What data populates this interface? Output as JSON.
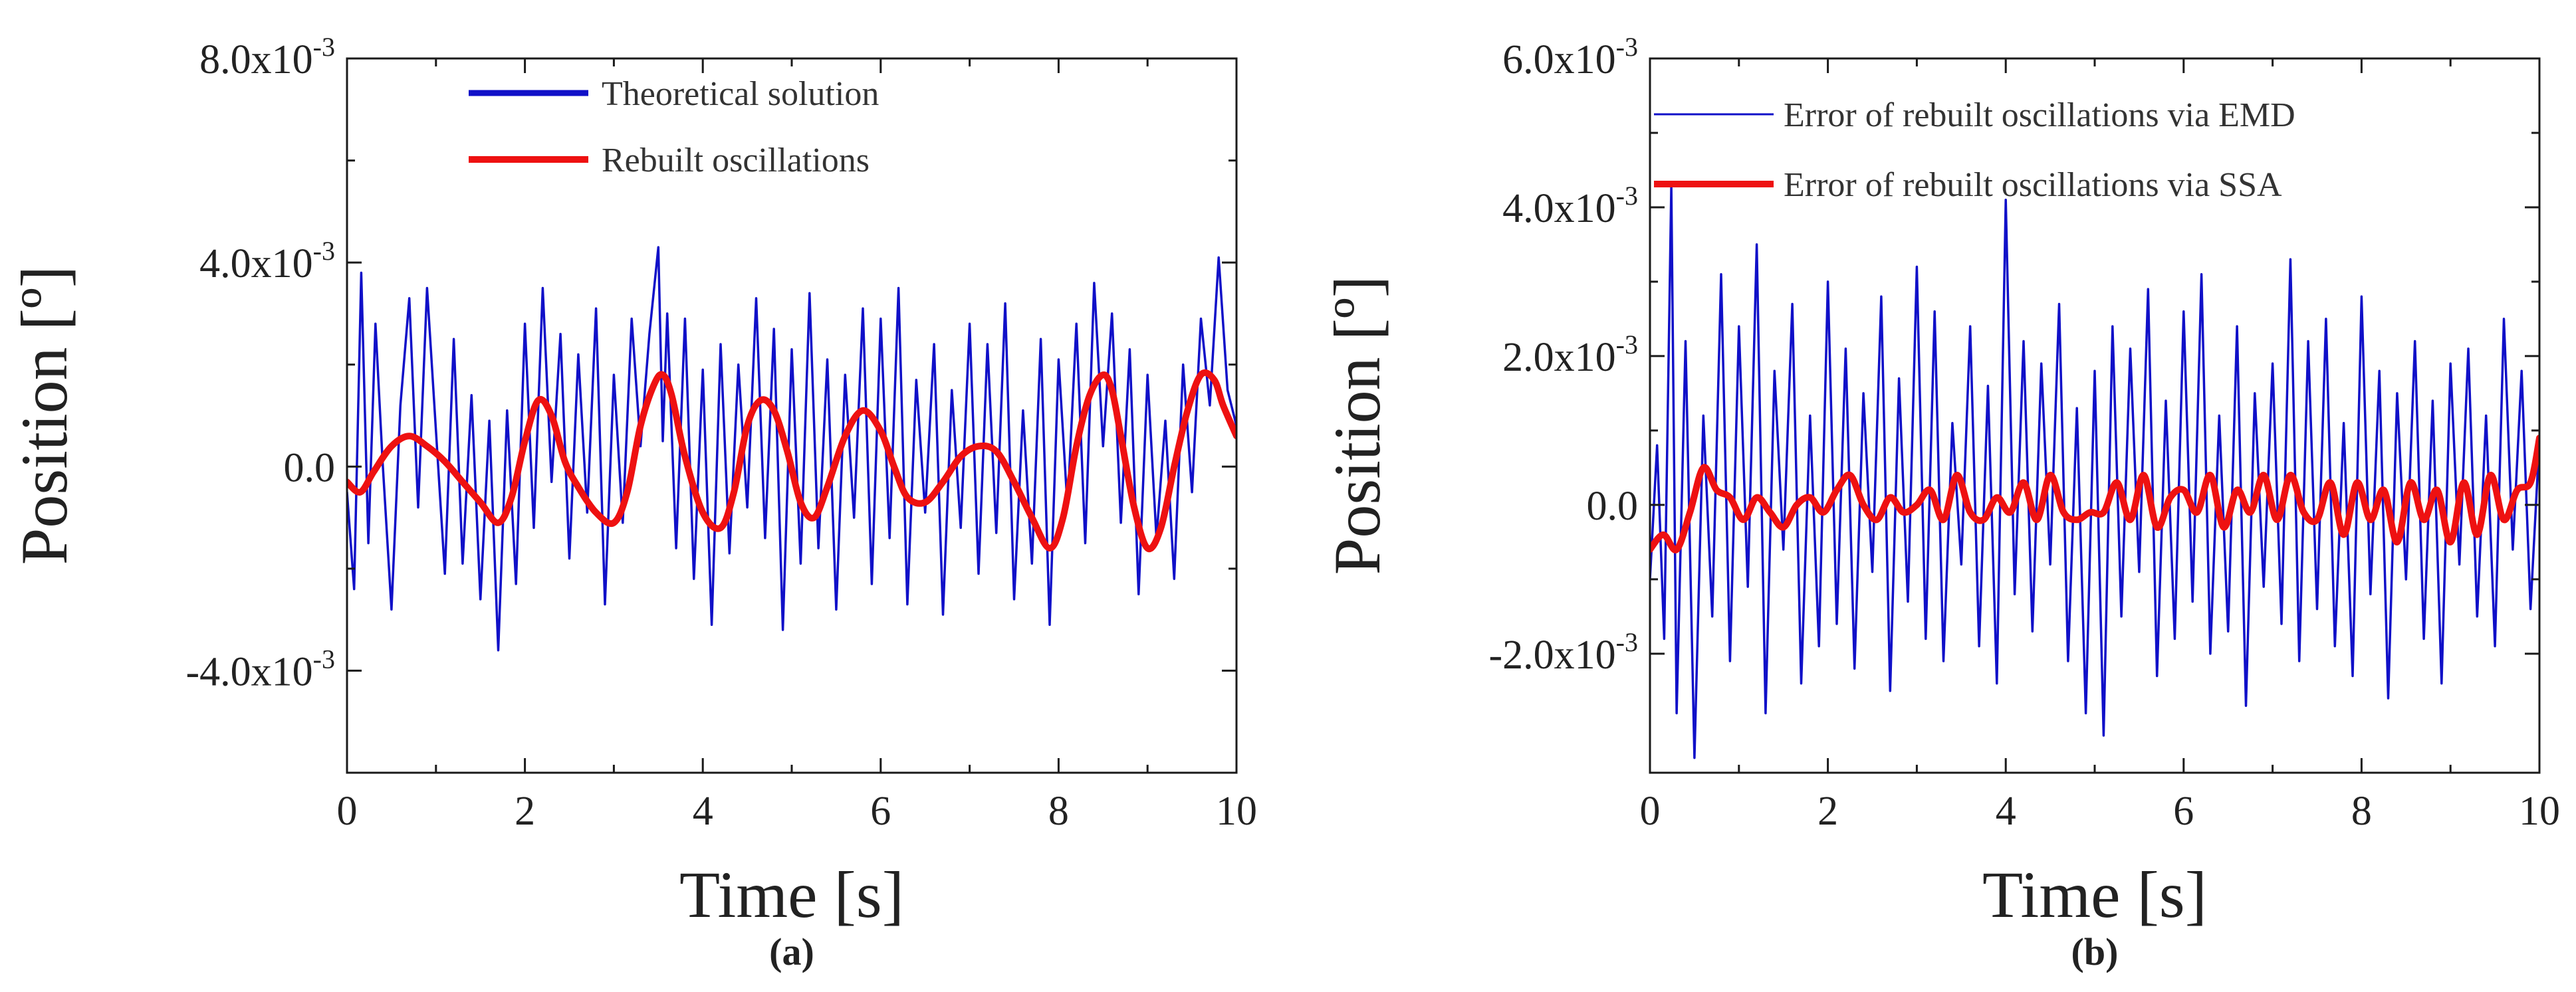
{
  "chart_data": [
    {
      "panel": "(a)",
      "type": "line",
      "title": "",
      "xlabel": "Time [s]",
      "ylabel": "Position [º]",
      "xlim": [
        0,
        10
      ],
      "ylim": [
        -0.006,
        0.008
      ],
      "xticks": [
        0,
        2,
        4,
        6,
        8,
        10
      ],
      "xtick_labels": [
        "0",
        "2",
        "4",
        "6",
        "8",
        "10"
      ],
      "yticks": [
        -0.004,
        0,
        0.004,
        0.008
      ],
      "ytick_labels": [
        {
          "mantissa": "-4.0x10",
          "exp": "-3"
        },
        {
          "mantissa": "0.0",
          "exp": ""
        },
        {
          "mantissa": "4.0x10",
          "exp": "-3"
        },
        {
          "mantissa": "8.0x10",
          "exp": "-3"
        }
      ],
      "legend_position": "top-center",
      "series": [
        {
          "name": "Theoretical solution",
          "color": "#1010c8",
          "kind": "noisy",
          "x": [
            0,
            0.08,
            0.16,
            0.24,
            0.32,
            0.4,
            0.5,
            0.6,
            0.7,
            0.8,
            0.9,
            1.0,
            1.1,
            1.2,
            1.3,
            1.4,
            1.5,
            1.6,
            1.7,
            1.8,
            1.9,
            2.0,
            2.1,
            2.2,
            2.3,
            2.4,
            2.5,
            2.6,
            2.7,
            2.8,
            2.9,
            3.0,
            3.1,
            3.2,
            3.3,
            3.4,
            3.5,
            3.55,
            3.6,
            3.7,
            3.8,
            3.9,
            4.0,
            4.1,
            4.2,
            4.3,
            4.4,
            4.5,
            4.6,
            4.7,
            4.8,
            4.9,
            5.0,
            5.1,
            5.2,
            5.3,
            5.4,
            5.5,
            5.6,
            5.7,
            5.8,
            5.9,
            6.0,
            6.1,
            6.2,
            6.3,
            6.4,
            6.5,
            6.6,
            6.7,
            6.8,
            6.9,
            7.0,
            7.1,
            7.2,
            7.3,
            7.4,
            7.5,
            7.6,
            7.7,
            7.8,
            7.9,
            8.0,
            8.1,
            8.2,
            8.3,
            8.4,
            8.5,
            8.6,
            8.7,
            8.8,
            8.9,
            9.0,
            9.1,
            9.2,
            9.3,
            9.4,
            9.5,
            9.6,
            9.7,
            9.8,
            9.9,
            10.0
          ],
          "values": [
            -0.0005,
            -0.0024,
            0.0038,
            -0.0015,
            0.0028,
            0.0001,
            -0.0028,
            0.0012,
            0.0033,
            -0.0008,
            0.0035,
            0.0007,
            -0.0021,
            0.0025,
            -0.0019,
            0.0014,
            -0.0026,
            0.0009,
            -0.0036,
            0.0011,
            -0.0023,
            0.0028,
            -0.0012,
            0.0035,
            -0.0003,
            0.0026,
            -0.0018,
            0.0022,
            -0.0009,
            0.0031,
            -0.0027,
            0.0018,
            -0.0011,
            0.0029,
            0.0004,
            0.0026,
            0.0043,
            0.0005,
            0.003,
            -0.0016,
            0.0029,
            -0.0022,
            0.0019,
            -0.0031,
            0.0024,
            -0.0017,
            0.002,
            -0.0008,
            0.0033,
            -0.0014,
            0.0027,
            -0.0032,
            0.0023,
            -0.0019,
            0.0034,
            -0.0016,
            0.0021,
            -0.0028,
            0.0018,
            -0.001,
            0.0031,
            -0.0023,
            0.0029,
            -0.0014,
            0.0035,
            -0.0027,
            0.0017,
            -0.0009,
            0.0024,
            -0.0029,
            0.0015,
            -0.0012,
            0.0028,
            -0.0021,
            0.0024,
            -0.0013,
            0.0032,
            -0.0026,
            0.0011,
            -0.0019,
            0.0025,
            -0.0031,
            0.0021,
            -0.0008,
            0.0028,
            -0.0015,
            0.0036,
            0.0004,
            0.003,
            -0.0011,
            0.0023,
            -0.0025,
            0.0018,
            -0.0014,
            0.0009,
            -0.0022,
            0.002,
            -0.0005,
            0.0029,
            0.0012,
            0.0041,
            0.0015,
            0.0008
          ]
        },
        {
          "name": "Rebuilt oscillations",
          "color": "#ee1111",
          "kind": "smooth",
          "x": [
            0,
            0.15,
            0.3,
            0.5,
            0.7,
            0.9,
            1.1,
            1.3,
            1.5,
            1.7,
            1.85,
            2.0,
            2.15,
            2.3,
            2.45,
            2.6,
            2.8,
            3.0,
            3.15,
            3.3,
            3.45,
            3.55,
            3.65,
            3.8,
            4.0,
            4.2,
            4.35,
            4.5,
            4.65,
            4.8,
            4.95,
            5.1,
            5.25,
            5.4,
            5.6,
            5.8,
            6.0,
            6.15,
            6.3,
            6.5,
            6.7,
            6.9,
            7.1,
            7.3,
            7.5,
            7.7,
            7.9,
            8.05,
            8.2,
            8.35,
            8.5,
            8.6,
            8.7,
            8.85,
            9.0,
            9.15,
            9.3,
            9.45,
            9.6,
            9.75,
            9.85,
            10.0
          ],
          "values": [
            -0.0003,
            -0.0005,
            -0.0001,
            0.0004,
            0.0006,
            0.0004,
            0.0001,
            -0.0003,
            -0.0007,
            -0.0011,
            -0.0006,
            0.0005,
            0.0013,
            0.001,
            0.0001,
            -0.0004,
            -0.0009,
            -0.0011,
            -0.0005,
            0.0008,
            0.0016,
            0.0018,
            0.0014,
            0.0002,
            -0.0009,
            -0.0012,
            -0.0005,
            0.0008,
            0.0013,
            0.0011,
            0.0003,
            -0.0007,
            -0.001,
            -0.0004,
            0.0006,
            0.0011,
            0.0007,
            0.0,
            -0.0006,
            -0.0007,
            -0.0003,
            0.0002,
            0.0004,
            0.0003,
            -0.0003,
            -0.001,
            -0.0016,
            -0.001,
            0.0004,
            0.0014,
            0.0018,
            0.0015,
            0.0006,
            -0.0008,
            -0.0016,
            -0.0012,
            0.0,
            0.0011,
            0.0018,
            0.0017,
            0.0012,
            0.0006
          ]
        }
      ]
    },
    {
      "panel": "(b)",
      "type": "line",
      "title": "",
      "xlabel": "Time [s]",
      "ylabel": "Position [º]",
      "xlim": [
        0,
        10
      ],
      "ylim": [
        -0.0036,
        0.006
      ],
      "xticks": [
        0,
        2,
        4,
        6,
        8,
        10
      ],
      "xtick_labels": [
        "0",
        "2",
        "4",
        "6",
        "8",
        "10"
      ],
      "yticks": [
        -0.002,
        0,
        0.002,
        0.004,
        0.006
      ],
      "ytick_labels": [
        {
          "mantissa": "-2.0x10",
          "exp": "-3"
        },
        {
          "mantissa": "0.0",
          "exp": ""
        },
        {
          "mantissa": "2.0x10",
          "exp": "-3"
        },
        {
          "mantissa": "4.0x10",
          "exp": "-3"
        },
        {
          "mantissa": "6.0x10",
          "exp": "-3"
        }
      ],
      "legend_position": "top-right",
      "series": [
        {
          "name": "Error of rebuilt oscillations via EMD",
          "color": "#1010c8",
          "kind": "noisy",
          "x": [
            0,
            0.08,
            0.16,
            0.24,
            0.3,
            0.4,
            0.5,
            0.6,
            0.7,
            0.8,
            0.9,
            1.0,
            1.1,
            1.2,
            1.3,
            1.4,
            1.5,
            1.6,
            1.7,
            1.8,
            1.9,
            2.0,
            2.1,
            2.2,
            2.3,
            2.4,
            2.5,
            2.6,
            2.7,
            2.8,
            2.9,
            3.0,
            3.1,
            3.2,
            3.3,
            3.4,
            3.5,
            3.6,
            3.7,
            3.8,
            3.9,
            4.0,
            4.1,
            4.2,
            4.3,
            4.4,
            4.5,
            4.6,
            4.7,
            4.8,
            4.9,
            5.0,
            5.1,
            5.2,
            5.3,
            5.4,
            5.5,
            5.6,
            5.7,
            5.8,
            5.9,
            6.0,
            6.1,
            6.2,
            6.3,
            6.4,
            6.5,
            6.6,
            6.7,
            6.8,
            6.9,
            7.0,
            7.1,
            7.2,
            7.3,
            7.4,
            7.5,
            7.6,
            7.7,
            7.8,
            7.9,
            8.0,
            8.1,
            8.2,
            8.3,
            8.4,
            8.5,
            8.6,
            8.7,
            8.8,
            8.9,
            9.0,
            9.1,
            9.2,
            9.3,
            9.4,
            9.5,
            9.6,
            9.7,
            9.8,
            9.9,
            10.0
          ],
          "values": [
            -0.001,
            0.0008,
            -0.0018,
            0.0043,
            -0.0028,
            0.0022,
            -0.0034,
            0.0012,
            -0.0015,
            0.0031,
            -0.0021,
            0.0024,
            -0.0011,
            0.0035,
            -0.0028,
            0.0018,
            -0.0006,
            0.0027,
            -0.0024,
            0.0012,
            -0.0019,
            0.003,
            -0.0016,
            0.0021,
            -0.0022,
            0.0015,
            -0.0009,
            0.0028,
            -0.0025,
            0.0017,
            -0.0013,
            0.0032,
            -0.0018,
            0.0026,
            -0.0021,
            0.0011,
            -0.0008,
            0.0024,
            -0.0019,
            0.0016,
            -0.0024,
            0.0041,
            -0.0012,
            0.0022,
            -0.0017,
            0.0019,
            -0.0008,
            0.0027,
            -0.0021,
            0.0013,
            -0.0028,
            0.0018,
            -0.0031,
            0.0024,
            -0.0015,
            0.0021,
            -0.0009,
            0.0029,
            -0.0023,
            0.0014,
            -0.0018,
            0.0026,
            -0.0013,
            0.0031,
            -0.002,
            0.0012,
            -0.0017,
            0.0024,
            -0.0027,
            0.0015,
            -0.0011,
            0.0019,
            -0.0016,
            0.0033,
            -0.0021,
            0.0022,
            -0.0014,
            0.0025,
            -0.0019,
            0.0011,
            -0.0023,
            0.0028,
            -0.0012,
            0.0018,
            -0.0026,
            0.0015,
            -0.001,
            0.0022,
            -0.0018,
            0.0014,
            -0.0024,
            0.0019,
            -0.0008,
            0.0021,
            -0.0015,
            0.0012,
            -0.0019,
            0.0025,
            -0.0006,
            0.0018,
            -0.0014,
            0.0009
          ]
        },
        {
          "name": "Error of  rebuilt oscillations via SSA",
          "color": "#ee1111",
          "kind": "smooth",
          "x": [
            0,
            0.15,
            0.3,
            0.45,
            0.6,
            0.75,
            0.9,
            1.05,
            1.2,
            1.35,
            1.5,
            1.65,
            1.8,
            1.95,
            2.1,
            2.25,
            2.4,
            2.55,
            2.7,
            2.85,
            3.0,
            3.15,
            3.3,
            3.45,
            3.6,
            3.75,
            3.9,
            4.05,
            4.2,
            4.35,
            4.5,
            4.65,
            4.8,
            4.95,
            5.1,
            5.25,
            5.4,
            5.55,
            5.7,
            5.85,
            6.0,
            6.15,
            6.3,
            6.45,
            6.6,
            6.75,
            6.9,
            7.05,
            7.2,
            7.35,
            7.5,
            7.65,
            7.8,
            7.95,
            8.1,
            8.25,
            8.4,
            8.55,
            8.7,
            8.85,
            9.0,
            9.15,
            9.3,
            9.45,
            9.6,
            9.75,
            9.9,
            10.0
          ],
          "values": [
            -0.0006,
            -0.0004,
            -0.0006,
            -0.0001,
            0.0005,
            0.0002,
            0.0001,
            -0.0002,
            0.0001,
            -0.0001,
            -0.0003,
            0.0,
            0.0001,
            -0.0001,
            0.0002,
            0.0004,
            0.0,
            -0.0002,
            0.0001,
            -0.0001,
            0.0,
            0.0002,
            -0.0002,
            0.0004,
            -0.0001,
            -0.0002,
            0.0001,
            -0.0001,
            0.0003,
            -0.0002,
            0.0004,
            -0.0001,
            -0.0002,
            -0.0001,
            -0.0001,
            0.0003,
            -0.0002,
            0.0004,
            -0.0003,
            0.0001,
            0.0002,
            -0.0001,
            0.0004,
            -0.0003,
            0.0002,
            -0.0001,
            0.0004,
            -0.0002,
            0.0004,
            -0.0001,
            -0.0002,
            0.0003,
            -0.0004,
            0.0003,
            -0.0002,
            0.0002,
            -0.0005,
            0.0003,
            -0.0002,
            0.0002,
            -0.0005,
            0.0003,
            -0.0004,
            0.0004,
            -0.0002,
            0.0002,
            0.0003,
            0.0009
          ]
        }
      ]
    }
  ]
}
